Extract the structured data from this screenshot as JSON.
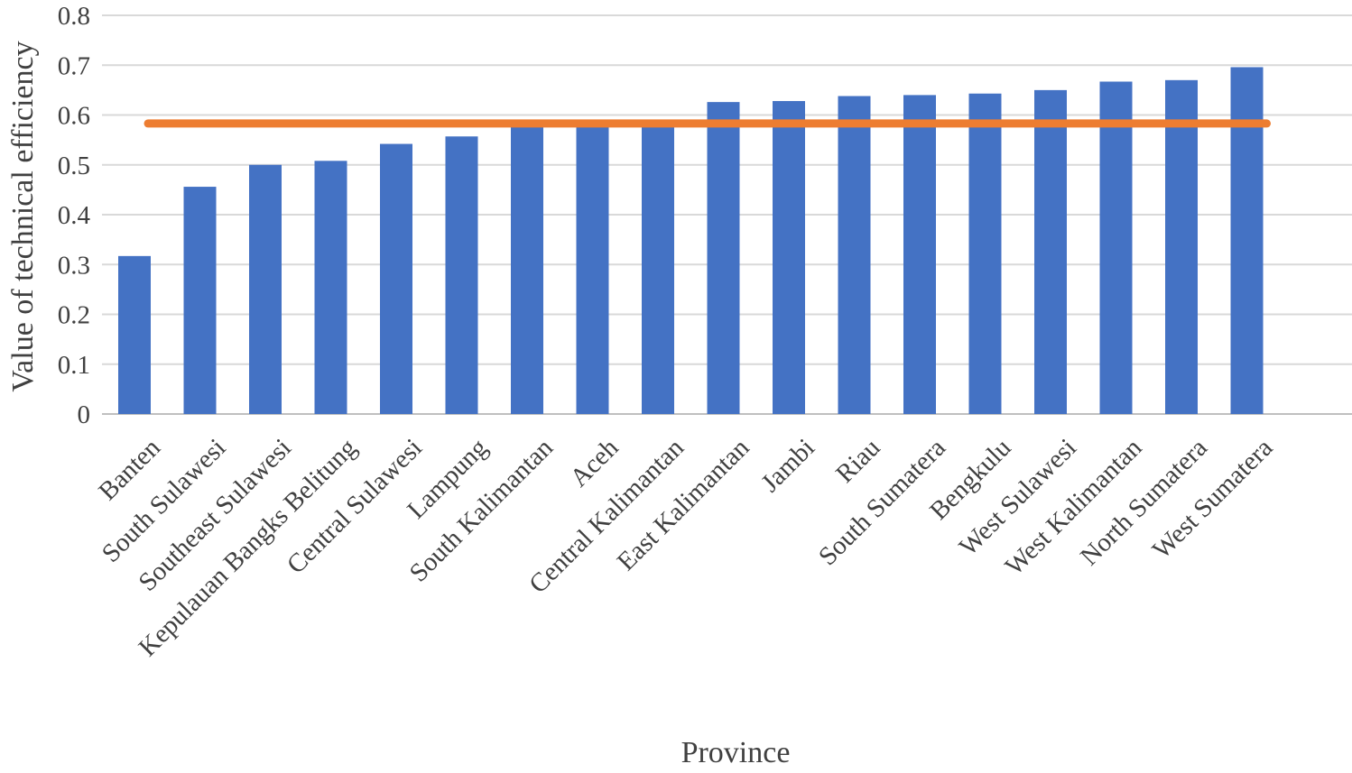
{
  "chart_data": {
    "type": "bar",
    "xlabel": "Province",
    "ylabel": "Value of technical efficiency",
    "ylim": [
      0,
      0.8
    ],
    "yticks": [
      "0",
      "0.1",
      "0.2",
      "0.3",
      "0.4",
      "0.5",
      "0.6",
      "0.7",
      "0.8"
    ],
    "grid": true,
    "categories": [
      "Banten",
      "South Sulawesi",
      "Southeast Sulawesi",
      "Kepulauan Bangks Belitung",
      "Central Sulawesi",
      "Lampung",
      "South Kalimantan",
      "Aceh",
      "Central Kalimantan",
      "East Kalimantan",
      "Jambi",
      "Riau",
      "South Sumatera",
      "Bengkulu",
      "West Sulawesi",
      "West Kalimantan",
      "North Sumatera",
      "West Sumatera"
    ],
    "values": [
      0.317,
      0.456,
      0.5,
      0.508,
      0.542,
      0.557,
      0.583,
      0.585,
      0.587,
      0.626,
      0.628,
      0.638,
      0.64,
      0.643,
      0.65,
      0.667,
      0.67,
      0.696
    ],
    "reference_line": 0.583,
    "colors": {
      "bar": "#4472c4",
      "line": "#ed7d31",
      "grid": "#d9d9d9",
      "axis": "#bfbfbf"
    }
  }
}
